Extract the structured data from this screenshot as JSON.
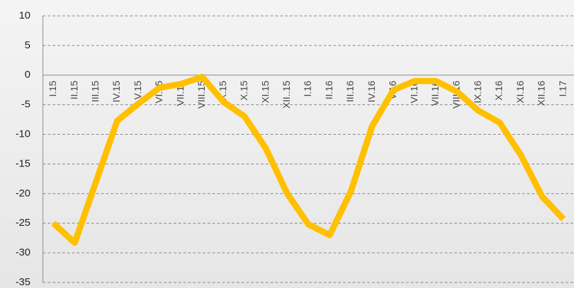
{
  "chart_data": {
    "type": "line",
    "categories": [
      "I.15",
      "II.15",
      "III.15",
      "IV.15",
      "V.15",
      "VI.15",
      "VII.15",
      "VIII.15",
      "IX.15",
      "X.15",
      "XI.15",
      "XII..15",
      "I.16",
      "II.16",
      "III.16",
      "IV.16",
      "V.16",
      "VI.16",
      "VII.16",
      "VIII.16",
      "IX.16",
      "X.16",
      "XI.16",
      "XII.16",
      "I.17"
    ],
    "series": [
      {
        "color": "#ffc000",
        "values": [
          -25,
          -28.3,
          -18,
          -7.7,
          -4.8,
          -2.1,
          -1.5,
          -0.3,
          -4.5,
          -7,
          -12.4,
          -20,
          -25.2,
          -27,
          -19.6,
          -8.6,
          -2.5,
          -1,
          -1,
          -2.8,
          -6,
          -8,
          -13.5,
          -20.5,
          -24.3
        ]
      }
    ],
    "ylim": [
      -35,
      10
    ],
    "yticks": [
      -35,
      -30,
      -25,
      -20,
      -15,
      -10,
      -5,
      0,
      5,
      10
    ],
    "grid": true
  }
}
